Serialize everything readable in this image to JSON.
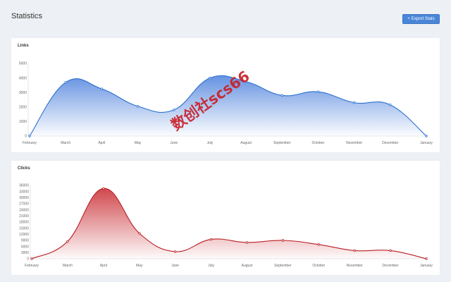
{
  "page": {
    "title": "Statistics",
    "export_icon": "plus-icon",
    "export_symbol": "+",
    "export_label": "Export Stats"
  },
  "colors": {
    "background": "#edf0f4",
    "card": "#ffffff",
    "links_line": "#2a6fcf",
    "links_fill": "#4a7fdc",
    "clicks_line": "#b81e24",
    "clicks_fill": "#c8282e",
    "button": "#4a86d8",
    "watermark": "#c8222c"
  },
  "watermark": {
    "text": "数创社scs66"
  },
  "chart_data": [
    {
      "id": "links",
      "type": "area",
      "title": "Links",
      "categories": [
        "February",
        "March",
        "April",
        "May",
        "June",
        "July",
        "August",
        "September",
        "October",
        "November",
        "December",
        "January"
      ],
      "series": [
        {
          "name": "Links",
          "values": [
            0,
            3700,
            3250,
            2050,
            1800,
            4000,
            3750,
            2800,
            3050,
            2300,
            2150,
            0
          ]
        }
      ],
      "yticks": [
        "0",
        "1000",
        "2000",
        "3000",
        "4000",
        "5000"
      ],
      "ylim": [
        0,
        5000
      ],
      "grid": false,
      "legend": "none"
    },
    {
      "id": "clicks",
      "type": "area",
      "title": "Clicks",
      "categories": [
        "February",
        "March",
        "April",
        "May",
        "June",
        "July",
        "August",
        "September",
        "October",
        "November",
        "December",
        "January"
      ],
      "series": [
        {
          "name": "Clicks",
          "values": [
            0,
            8500,
            34500,
            12500,
            3500,
            9500,
            8000,
            9000,
            7000,
            4000,
            4000,
            0
          ]
        }
      ],
      "yticks": [
        "0",
        "3000",
        "6000",
        "9000",
        "12000",
        "15000",
        "18000",
        "21000",
        "24000",
        "27000",
        "30000",
        "33000",
        "36000"
      ],
      "ylim": [
        0,
        36000
      ],
      "grid": false,
      "legend": "none"
    }
  ]
}
